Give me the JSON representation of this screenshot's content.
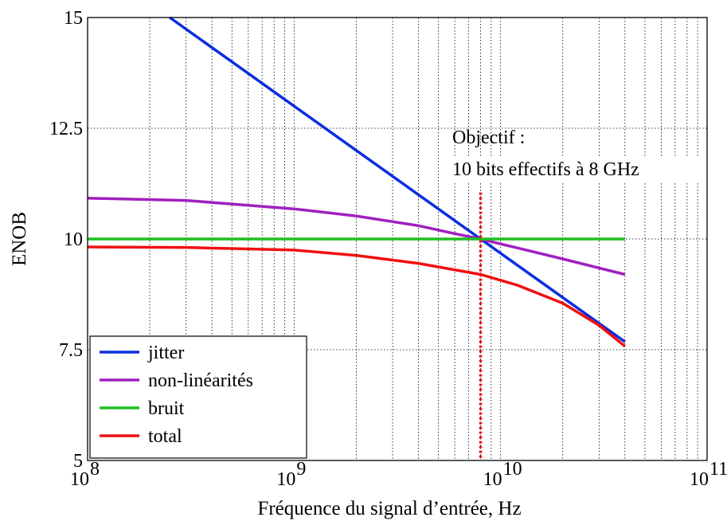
{
  "chart_data": {
    "type": "line",
    "xlabel": "Fréquence du signal d’entrée, Hz",
    "ylabel": "ENOB",
    "x_scale": "log",
    "xlim": [
      100000000,
      100000000000
    ],
    "ylim": [
      5,
      15
    ],
    "x_ticks": [
      {
        "value": 100000000,
        "base": "10",
        "exp": "8"
      },
      {
        "value": 1000000000,
        "base": "10",
        "exp": "9"
      },
      {
        "value": 10000000000,
        "base": "10",
        "exp": "10"
      },
      {
        "value": 100000000000,
        "base": "10",
        "exp": "11"
      }
    ],
    "y_ticks": [
      {
        "value": 5,
        "label": "5"
      },
      {
        "value": 7.5,
        "label": "7.5"
      },
      {
        "value": 10,
        "label": "10"
      },
      {
        "value": 12.5,
        "label": "12.5"
      },
      {
        "value": 15,
        "label": "15"
      }
    ],
    "grid": true,
    "legend_position": "bottom-left",
    "series": [
      {
        "name": "jitter",
        "color": "#0a2ee0",
        "x": [
          250000000,
          500000000,
          1000000000,
          2000000000,
          4000000000,
          8000000000,
          16000000000,
          40000000000
        ],
        "y": [
          15,
          14,
          13,
          12,
          11,
          10,
          9,
          7.68
        ]
      },
      {
        "name": "non-linéarités",
        "color": "#a020c0",
        "x": [
          100000000,
          300000000,
          1000000000,
          2000000000,
          4000000000,
          6000000000,
          8000000000,
          12000000000,
          20000000000,
          40000000000
        ],
        "y": [
          10.92,
          10.87,
          10.68,
          10.52,
          10.3,
          10.12,
          10,
          9.8,
          9.55,
          9.2
        ]
      },
      {
        "name": "bruit",
        "color": "#1fbf1f",
        "x": [
          100000000,
          40000000000
        ],
        "y": [
          10,
          10
        ]
      },
      {
        "name": "total",
        "color": "#f01010",
        "x": [
          100000000,
          300000000,
          1000000000,
          2000000000,
          4000000000,
          8000000000,
          12000000000,
          20000000000,
          30000000000,
          40000000000
        ],
        "y": [
          9.82,
          9.81,
          9.75,
          9.63,
          9.45,
          9.2,
          8.96,
          8.55,
          8.05,
          7.58
        ]
      }
    ],
    "target_marker": {
      "x": 8000000000,
      "y_from": 5,
      "y_to": 11.05,
      "color": "#f01010"
    },
    "annotation": [
      "Objectif :",
      "10 bits effectifs à 8 GHz"
    ]
  }
}
